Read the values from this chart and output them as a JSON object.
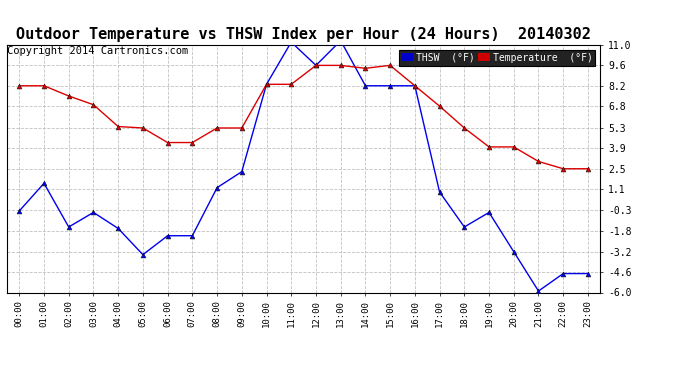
{
  "title": "Outdoor Temperature vs THSW Index per Hour (24 Hours)  20140302",
  "copyright": "Copyright 2014 Cartronics.com",
  "hours": [
    "00:00",
    "01:00",
    "02:00",
    "03:00",
    "04:00",
    "05:00",
    "06:00",
    "07:00",
    "08:00",
    "09:00",
    "10:00",
    "11:00",
    "12:00",
    "13:00",
    "14:00",
    "15:00",
    "16:00",
    "17:00",
    "18:00",
    "19:00",
    "20:00",
    "21:00",
    "22:00",
    "23:00"
  ],
  "thsw": [
    -0.4,
    1.5,
    -1.5,
    -0.5,
    -1.6,
    -3.4,
    -2.1,
    -2.1,
    1.2,
    2.3,
    8.3,
    11.2,
    9.6,
    11.3,
    8.2,
    8.2,
    8.2,
    0.9,
    -1.5,
    -0.5,
    -3.2,
    -5.9,
    -4.7,
    -4.7
  ],
  "temperature": [
    8.2,
    8.2,
    7.5,
    6.9,
    5.4,
    5.3,
    4.3,
    4.3,
    5.3,
    5.3,
    8.3,
    8.3,
    9.6,
    9.6,
    9.4,
    9.6,
    8.2,
    6.8,
    5.3,
    4.0,
    4.0,
    3.0,
    2.5,
    2.5
  ],
  "ylim_min": -6.0,
  "ylim_max": 11.0,
  "yticks": [
    -6.0,
    -4.6,
    -3.2,
    -1.8,
    -0.3,
    1.1,
    2.5,
    3.9,
    5.3,
    6.8,
    8.2,
    9.6,
    11.0
  ],
  "thsw_color": "#0000ee",
  "temp_color": "#dd0000",
  "legend_thsw_bg": "#0000cc",
  "legend_temp_bg": "#cc0000",
  "background_color": "#ffffff",
  "grid_color": "#bbbbbb",
  "title_fontsize": 11,
  "copyright_fontsize": 7.5
}
